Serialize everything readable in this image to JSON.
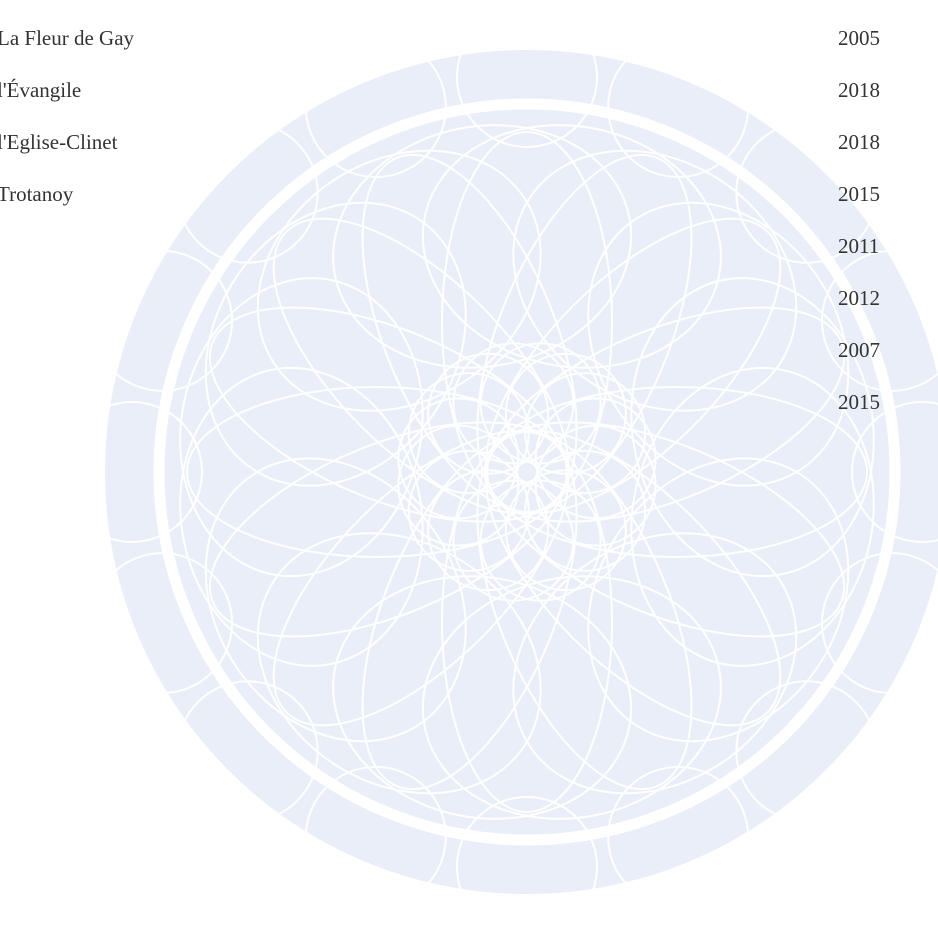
{
  "wines": [
    {
      "name": "La Fleur de Gay",
      "year": 2005
    },
    {
      "name": "l'Évangile",
      "year": 2018
    },
    {
      "name": "l'Eglise-Clinet",
      "year": 2018
    },
    {
      "name": "Trotanoy",
      "year": 2015
    },
    {
      "year": 2011
    },
    {
      "year": 2012
    },
    {
      "year": 2007
    },
    {
      "year": 2015
    }
  ]
}
